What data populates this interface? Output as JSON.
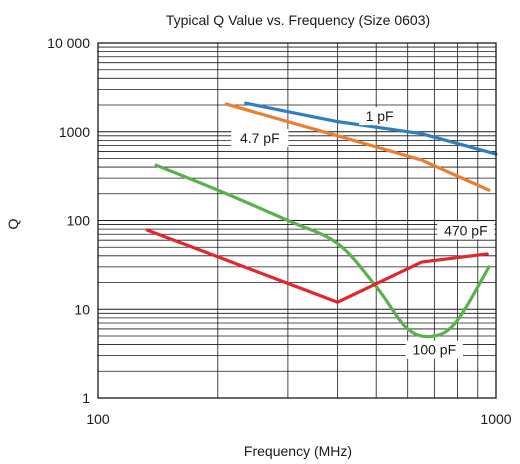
{
  "chart_data": {
    "type": "line",
    "title": "Typical Q Value vs. Frequency (Size 0603)",
    "xlabel": "Frequency (MHz)",
    "ylabel": "Q",
    "xscale": "log",
    "yscale": "log",
    "xlim": [
      100,
      1000
    ],
    "ylim": [
      1,
      10000
    ],
    "x_tick_labels": [
      {
        "value": 100,
        "label": "100"
      },
      {
        "value": 1000,
        "label": "1000"
      }
    ],
    "y_tick_labels": [
      {
        "value": 1,
        "label": "1"
      },
      {
        "value": 10,
        "label": "10"
      },
      {
        "value": 100,
        "label": "100"
      },
      {
        "value": 1000,
        "label": "1000"
      },
      {
        "value": 10000,
        "label": "10 000"
      }
    ],
    "grid": true,
    "series": [
      {
        "name": "1 pF",
        "color": "#2e7fc1",
        "x": [
          235,
          400,
          650,
          1000
        ],
        "y": [
          2100,
          1300,
          950,
          560
        ]
      },
      {
        "name": "4.7 pF",
        "color": "#ed7d31",
        "x": [
          210,
          400,
          650,
          960
        ],
        "y": [
          2050,
          900,
          480,
          220
        ]
      },
      {
        "name": "100 pF",
        "color": "#59b14c",
        "x": [
          140,
          200,
          300,
          400,
          500,
          600,
          700,
          800,
          960
        ],
        "y": [
          420,
          220,
          100,
          55,
          18,
          6,
          5,
          7.5,
          30
        ]
      },
      {
        "name": "470 pF",
        "color": "#e3262d",
        "x": [
          133,
          400,
          650,
          950
        ],
        "y": [
          78,
          12,
          34,
          42
        ]
      }
    ],
    "annotations": [
      {
        "text": "1 pF",
        "series": "1 pF",
        "x": 510,
        "y": 1500
      },
      {
        "text": "4.7 pF",
        "series": "4.7 pF",
        "x": 255,
        "y": 850
      },
      {
        "text": "470 pF",
        "series": "470 pF",
        "x": 840,
        "y": 77
      },
      {
        "text": "100 pF",
        "series": "100 pF",
        "x": 700,
        "y": 3.5
      }
    ]
  }
}
